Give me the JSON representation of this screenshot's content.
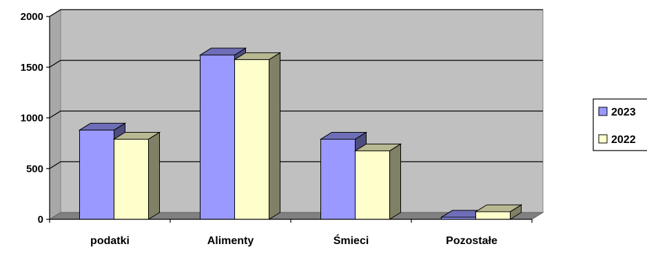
{
  "chart_data": {
    "type": "bar",
    "categories": [
      "podatki",
      "Alimenty",
      "Śmieci",
      "Pozostałe"
    ],
    "series": [
      {
        "name": "2023",
        "values": [
          880,
          1620,
          790,
          20
        ],
        "color": "#9999ff"
      },
      {
        "name": "2022",
        "values": [
          790,
          1575,
          675,
          75
        ],
        "color": "#ffffcc"
      }
    ],
    "ylim": [
      0,
      2000
    ],
    "yticks": [
      0,
      500,
      1000,
      1500,
      2000
    ],
    "grid": true,
    "legend_position": "right",
    "colors": {
      "plot_background": "#c0c0c0",
      "gridline": "#000000",
      "bar_outline": "#000000"
    }
  }
}
